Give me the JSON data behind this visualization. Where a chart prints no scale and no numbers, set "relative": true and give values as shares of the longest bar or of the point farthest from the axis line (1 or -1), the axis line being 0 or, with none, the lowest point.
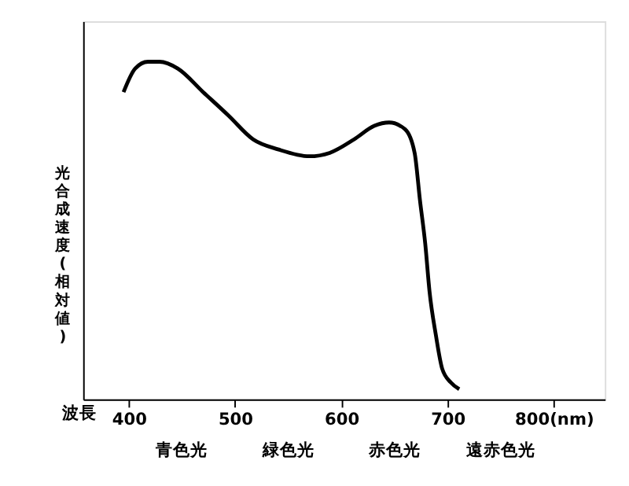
{
  "chart_data": {
    "type": "line",
    "relative": true,
    "ylabel": "光合成速度(相対値)",
    "xlabel": "波長",
    "x": [
      395,
      406,
      418,
      429,
      446,
      470,
      494,
      517,
      541,
      570,
      589,
      612,
      631,
      645,
      660,
      669,
      674,
      679,
      683,
      689,
      695,
      703,
      711
    ],
    "values": [
      0.91,
      0.98,
      1.0,
      1.0,
      0.98,
      0.91,
      0.84,
      0.77,
      0.74,
      0.72,
      0.73,
      0.77,
      0.81,
      0.82,
      0.8,
      0.73,
      0.59,
      0.46,
      0.32,
      0.19,
      0.09,
      0.05,
      0.03
    ],
    "color": "#000000",
    "line_style": "solid",
    "marker": "none",
    "grid": false,
    "xlim": [
      357,
      848
    ],
    "xticks": [
      400,
      500,
      600,
      700,
      {
        "value": 800,
        "label": "800(nm)"
      }
    ],
    "annotations": [
      "青色光",
      "緑色光",
      "赤色光",
      "遠赤色光"
    ]
  }
}
